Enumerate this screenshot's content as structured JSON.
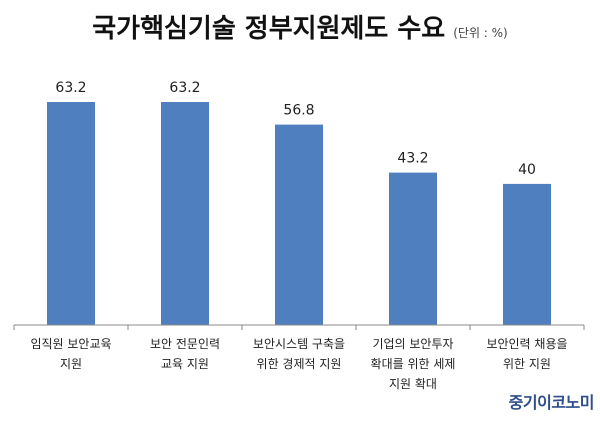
{
  "header": {
    "title": "국가핵심기술 정부지원제도 수요",
    "unit": "(단위 : %)"
  },
  "brand": "중기이코노미",
  "colors": {
    "bar": "#4f7fbf",
    "axis": "#888888"
  },
  "chart_data": {
    "type": "bar",
    "title": "국가핵심기술 정부지원제도 수요",
    "unit": "(단위 : %)",
    "categories": [
      [
        "임직원 보안교육",
        "지원"
      ],
      [
        "보안 전문인력",
        "교육 지원"
      ],
      [
        "보안시스템 구축을",
        "위한 경제적 지원"
      ],
      [
        "기업의 보안투자",
        "확대를 위한 세제",
        "지원 확대"
      ],
      [
        "보안인력 채용을",
        "위한 지원"
      ]
    ],
    "values": [
      63.2,
      63.2,
      56.8,
      43.2,
      40
    ],
    "data_labels": [
      "63.2",
      "63.2",
      "56.8",
      "43.2",
      "40"
    ],
    "ylim": [
      0,
      70
    ],
    "grid": false,
    "legend": "none"
  }
}
